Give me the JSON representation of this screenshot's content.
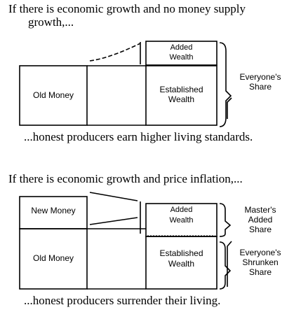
{
  "section1": {
    "heading_line1": "If there is economic growth and no money supply",
    "heading_line2": "growth,...",
    "added_wealth": [
      "Added",
      "Wealth"
    ],
    "established_wealth": [
      "Established",
      "Wealth"
    ],
    "old_money": "Old Money",
    "everyones_share": [
      "Everyone's",
      "Share"
    ],
    "conclusion": "...honest producers earn higher living standards."
  },
  "section2": {
    "heading": "If there is economic growth and price inflation,...",
    "new_money": "New Money",
    "old_money": "Old Money",
    "added_wealth": [
      "Added",
      "Wealth"
    ],
    "established_wealth": [
      "Established",
      "Wealth"
    ],
    "masters_share": [
      "Master's",
      "Added",
      "Share"
    ],
    "everyones_shrunken_share": [
      "Everyone's",
      "Shrunken",
      "Share"
    ],
    "conclusion": "...honest producers surrender their living."
  }
}
